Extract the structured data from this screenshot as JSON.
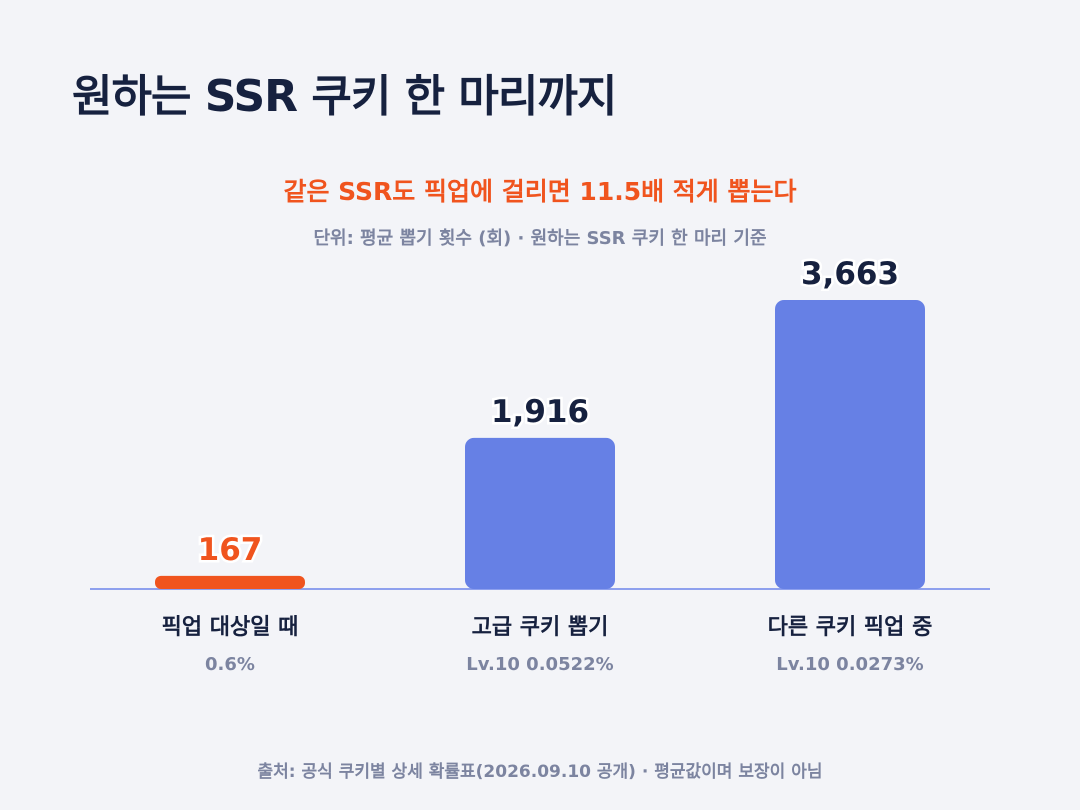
{
  "title": "원하는 SSR 쿠키 한 마리까지",
  "subtitle": "같은 SSR도 픽업에 걸리면 11.5배 적게 뽑는다",
  "unit_note": "단위: 평균 뽑기 횟수 (회) · 원하는 SSR 쿠키 한 마리 기준",
  "source": "출처: 공식 쿠키별 상세 확률표(2026.09.10 공개) · 평균값이며 보장이 아님",
  "colors": {
    "highlight": "#f0541e",
    "bar": "#6680e5",
    "baseline": "#8ea0ee",
    "value_text": "#16213f",
    "category_text": "#16213f",
    "sublabel_text": "#7c84a0"
  },
  "chart_data": {
    "type": "bar",
    "categories": [
      "픽업 대상일 때",
      "고급 쿠키 뽑기",
      "다른 쿠키 픽업 중"
    ],
    "sublabels": [
      "0.6%",
      "Lv.10 0.0522%",
      "Lv.10 0.0273%"
    ],
    "values": [
      167,
      1916,
      3663
    ],
    "value_labels": [
      "167",
      "1,916",
      "3,663"
    ],
    "highlight_index": 0,
    "ylim": [
      0,
      3663
    ],
    "grid": false,
    "legend": "none",
    "title": "",
    "xlabel": "",
    "ylabel": ""
  }
}
